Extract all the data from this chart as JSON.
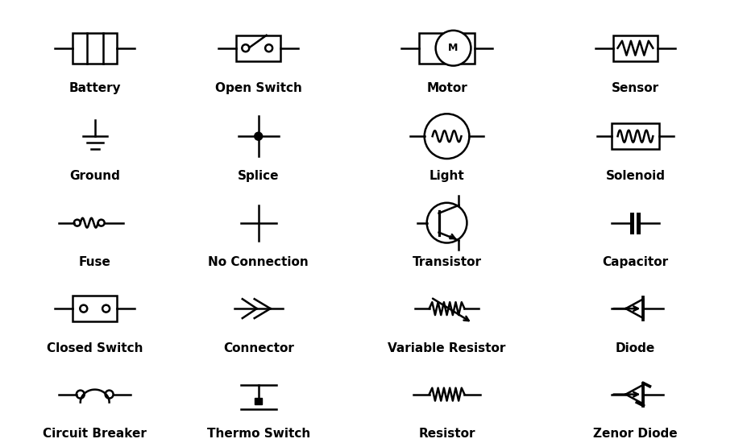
{
  "bg_color": "#ffffff",
  "text_color": "#000000",
  "line_color": "#000000",
  "lw": 1.8,
  "font_size": 11,
  "font_weight": "bold",
  "symbols": [
    {
      "name": "Battery",
      "col": 0,
      "row": 0
    },
    {
      "name": "Open Switch",
      "col": 1,
      "row": 0
    },
    {
      "name": "Motor",
      "col": 2,
      "row": 0
    },
    {
      "name": "Sensor",
      "col": 3,
      "row": 0
    },
    {
      "name": "Ground",
      "col": 0,
      "row": 1
    },
    {
      "name": "Splice",
      "col": 1,
      "row": 1
    },
    {
      "name": "Light",
      "col": 2,
      "row": 1
    },
    {
      "name": "Solenoid",
      "col": 3,
      "row": 1
    },
    {
      "name": "Fuse",
      "col": 0,
      "row": 2
    },
    {
      "name": "No Connection",
      "col": 1,
      "row": 2
    },
    {
      "name": "Transistor",
      "col": 2,
      "row": 2
    },
    {
      "name": "Capacitor",
      "col": 3,
      "row": 2
    },
    {
      "name": "Closed Switch",
      "col": 0,
      "row": 3
    },
    {
      "name": "Connector",
      "col": 1,
      "row": 3
    },
    {
      "name": "Variable Resistor",
      "col": 2,
      "row": 3
    },
    {
      "name": "Diode",
      "col": 3,
      "row": 3
    },
    {
      "name": "Circuit Breaker",
      "col": 0,
      "row": 4
    },
    {
      "name": "Thermo Switch",
      "col": 1,
      "row": 4
    },
    {
      "name": "Resistor",
      "col": 2,
      "row": 4
    },
    {
      "name": "Zenor Diode",
      "col": 3,
      "row": 4
    }
  ],
  "ncols": 4,
  "nrows": 5
}
